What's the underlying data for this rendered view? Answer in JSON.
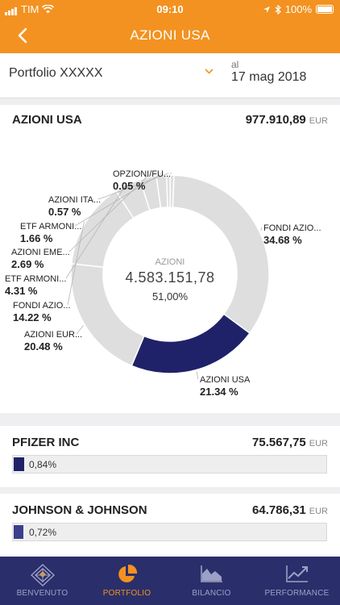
{
  "status_bar": {
    "carrier": "TIM",
    "time": "09:10",
    "battery": "100%"
  },
  "header": {
    "title": "AZIONI USA"
  },
  "portfolio": {
    "name": "Portfolio XXXXX",
    "date_label": "al",
    "date": "17 mag 2018"
  },
  "summary": {
    "title": "AZIONI USA",
    "amount": "977.910,89",
    "currency": "EUR"
  },
  "chart_data": {
    "type": "pie",
    "categories": [
      "FONDI AZIO...",
      "AZIONI USA",
      "AZIONI EUR...",
      "FONDI AZIO...",
      "ETF ARMONI...",
      "AZIONI EME...",
      "ETF ARMONI...",
      "AZIONI ITA...",
      "OPZIONI/FU..."
    ],
    "values": [
      34.68,
      21.34,
      20.48,
      14.22,
      4.31,
      2.69,
      1.66,
      0.57,
      0.05
    ],
    "value_labels": [
      "34.68 %",
      "21.34 %",
      "20.48 %",
      "14.22 %",
      "4.31 %",
      "2.69 %",
      "1.66 %",
      "0.57 %",
      "0.05 %"
    ],
    "highlighted": "AZIONI USA",
    "center": {
      "caption": "AZIONI",
      "amount": "4.583.151,78",
      "percent": "51,00%"
    },
    "colors": {
      "default": "#dedede",
      "highlight": "#1f2268"
    }
  },
  "holdings": [
    {
      "name": "PFIZER INC",
      "amount": "75.567,75",
      "currency": "EUR",
      "percent": "0,84%",
      "share": 0.84,
      "color": "#1f2268"
    },
    {
      "name": "JOHNSON & JOHNSON",
      "amount": "64.786,31",
      "currency": "EUR",
      "percent": "0,72%",
      "share": 0.72,
      "color": "#3b3f8c"
    }
  ],
  "tabs": [
    {
      "label": "BENVENUTO",
      "icon": "home-logo-icon"
    },
    {
      "label": "PORTFOLIO",
      "icon": "pie-chart-icon",
      "active": true
    },
    {
      "label": "BILANCIO",
      "icon": "area-chart-icon"
    },
    {
      "label": "PERFORMANCE",
      "icon": "line-chart-icon"
    }
  ]
}
